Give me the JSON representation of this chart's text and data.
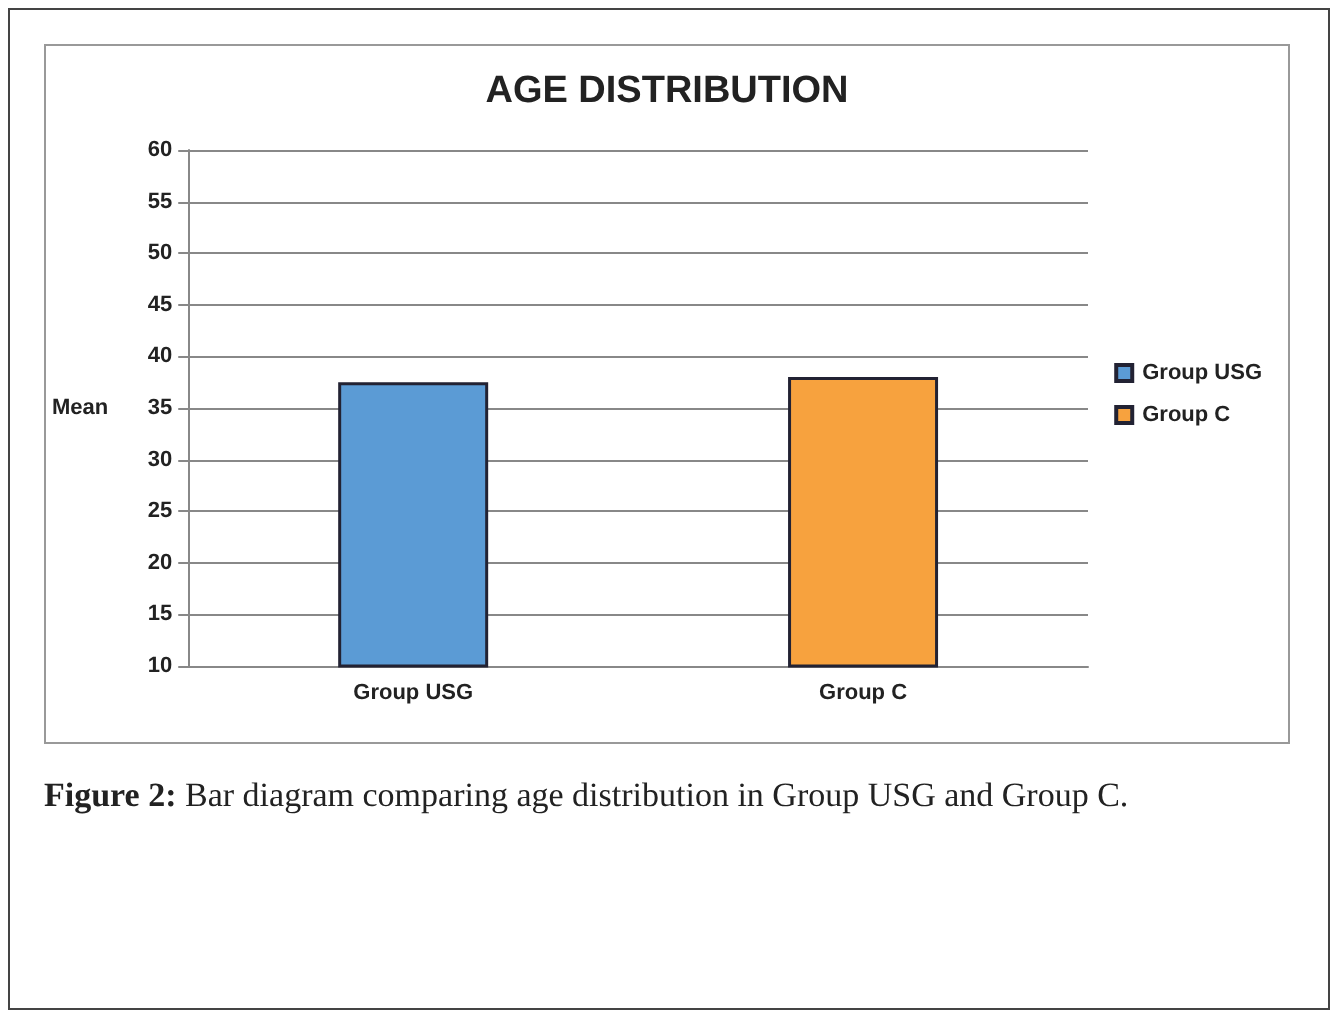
{
  "chart_data": {
    "type": "bar",
    "title": "AGE DISTRIBUTION",
    "ylabel": "Mean",
    "categories": [
      "Group USG",
      "Group C"
    ],
    "series": [
      {
        "name": "Group USG",
        "color": "#5b9bd5",
        "values": [
          37.5,
          null
        ]
      },
      {
        "name": "Group C",
        "color": "#f7a23e",
        "values": [
          null,
          38
        ]
      }
    ],
    "ylim": [
      10,
      60
    ],
    "yticks": [
      10,
      15,
      20,
      25,
      30,
      35,
      40,
      45,
      50,
      55,
      60
    ],
    "grid": "y",
    "legend": "right",
    "annotations": [
      "Figure 2: Bar diagram comparing age distribution in Group USG and Group C."
    ]
  }
}
